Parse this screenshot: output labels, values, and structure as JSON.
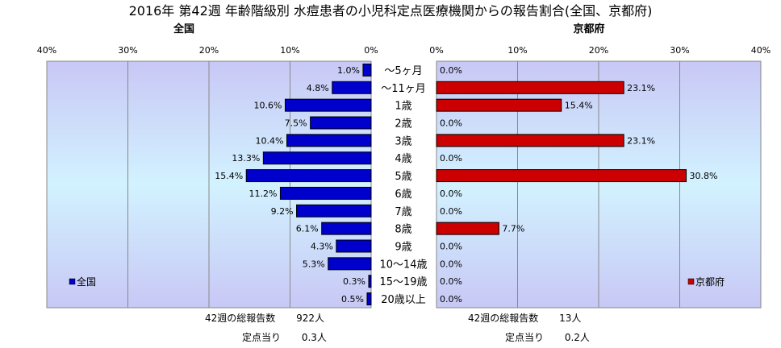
{
  "chart_data": {
    "type": "bar",
    "title": "2016年 第42週 年齢階級別 水痘患者の小児科定点医療機関からの報告割合(全国、京都府)",
    "categories": [
      "～5ヶ月",
      "～11ヶ月",
      "1歳",
      "2歳",
      "3歳",
      "4歳",
      "5歳",
      "6歳",
      "7歳",
      "8歳",
      "9歳",
      "10～14歳",
      "15～19歳",
      "20歳以上"
    ],
    "x_ticks": [
      "40%",
      "30%",
      "20%",
      "10%",
      "0%"
    ],
    "x_ticks_right": [
      "0%",
      "10%",
      "20%",
      "30%",
      "40%"
    ],
    "xlim": [
      0,
      40
    ],
    "grid": true,
    "series": [
      {
        "name": "全国",
        "panel_title": "全国",
        "side": "left",
        "color": "#0000cc",
        "legend_placement": "bottom-left",
        "values": [
          1.0,
          4.8,
          10.6,
          7.5,
          10.4,
          13.3,
          15.4,
          11.2,
          9.2,
          6.1,
          4.3,
          5.3,
          0.3,
          0.5
        ],
        "labels": [
          "1.0%",
          "4.8%",
          "10.6%",
          "7.5%",
          "10.4%",
          "13.3%",
          "15.4%",
          "11.2%",
          "9.2%",
          "6.1%",
          "4.3%",
          "5.3%",
          "0.3%",
          "0.5%"
        ]
      },
      {
        "name": "京都府",
        "panel_title": "京都府",
        "side": "right",
        "color": "#cc0000",
        "legend_placement": "bottom-right",
        "values": [
          0.0,
          23.1,
          15.4,
          0.0,
          23.1,
          0.0,
          30.8,
          0.0,
          0.0,
          7.7,
          0.0,
          0.0,
          0.0,
          0.0
        ],
        "labels": [
          "0.0%",
          "23.1%",
          "15.4%",
          "0.0%",
          "23.1%",
          "0.0%",
          "30.8%",
          "0.0%",
          "0.0%",
          "7.7%",
          "0.0%",
          "0.0%",
          "0.0%",
          "0.0%"
        ]
      }
    ]
  },
  "stats": {
    "national": {
      "total_label": "42週の総報告数",
      "total_value": "922人",
      "per_label": "定点当り",
      "per_value": "0.3人"
    },
    "kyoto": {
      "total_label": "42週の総報告数",
      "total_value": "13人",
      "per_label": "定点当り",
      "per_value": "0.2人"
    }
  }
}
